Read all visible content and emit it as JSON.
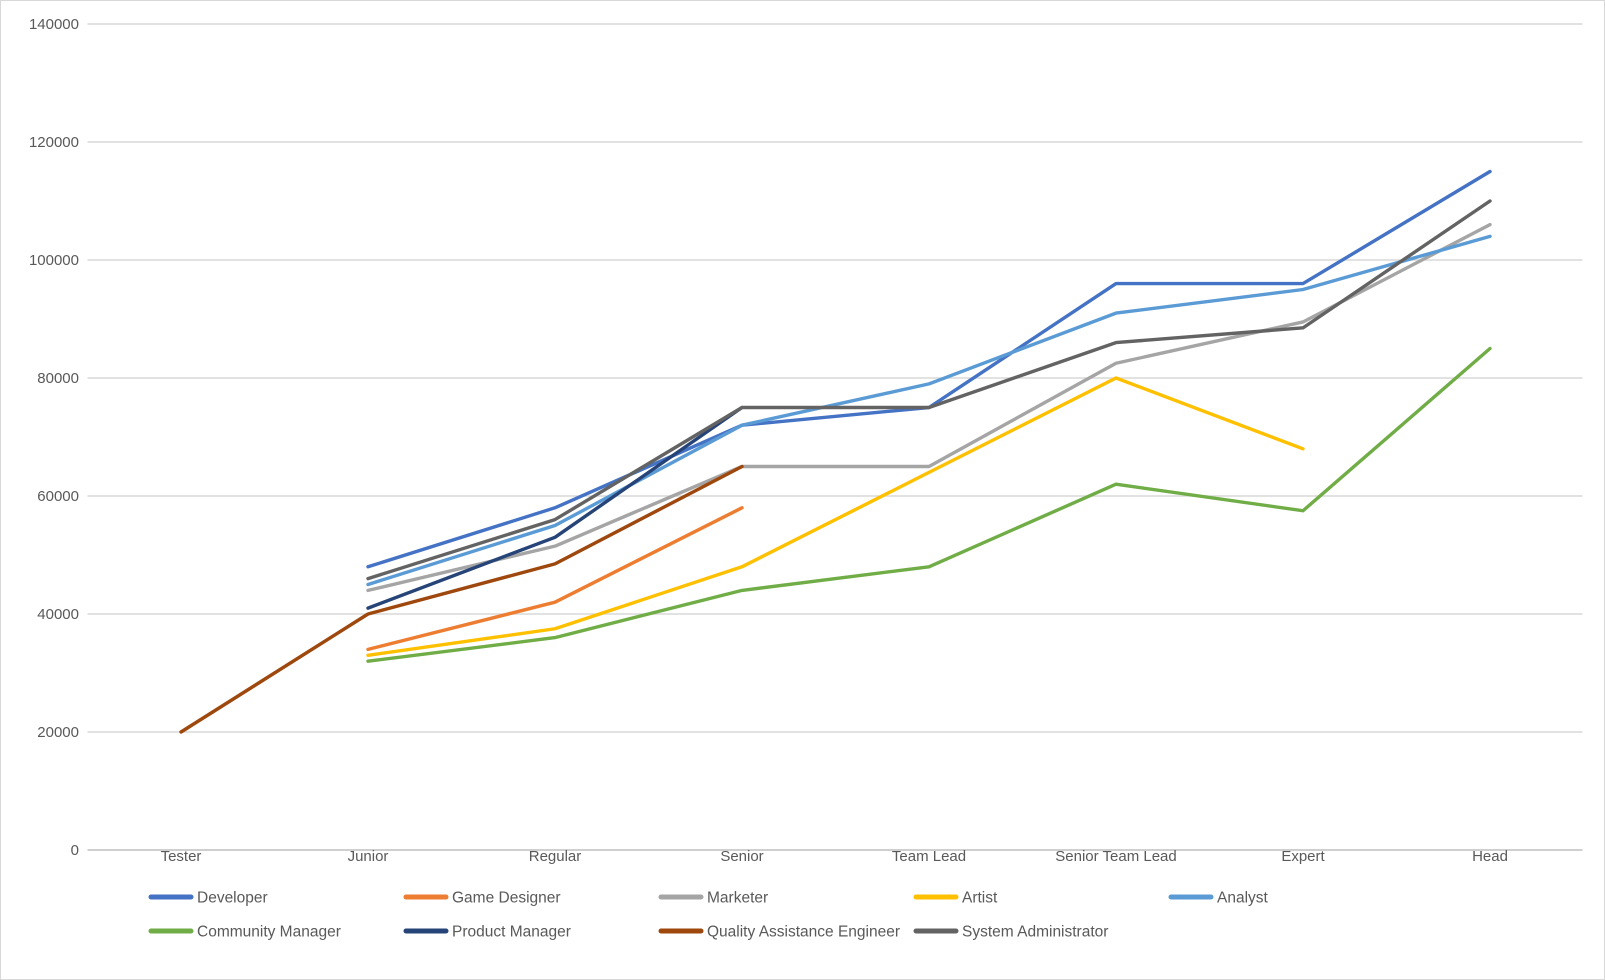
{
  "chart_data": {
    "type": "line",
    "title": "",
    "xlabel": "",
    "ylabel": "",
    "grid": true,
    "legend_position": "bottom",
    "categories": [
      "Tester",
      "Junior",
      "Regular",
      "Senior",
      "Team Lead",
      "Senior Team Lead",
      "Expert",
      "Head"
    ],
    "y_axis": {
      "min": 0,
      "max": 140000,
      "step": 20000,
      "tick_labels": [
        "0",
        "20000",
        "40000",
        "60000",
        "80000",
        "100000",
        "120000",
        "140000"
      ]
    },
    "series": [
      {
        "name": "Developer",
        "color": "#4472C4",
        "values": [
          null,
          48000,
          58000,
          72000,
          75000,
          96000,
          96000,
          115000
        ]
      },
      {
        "name": "Game Designer",
        "color": "#ED7D31",
        "values": [
          null,
          34000,
          42000,
          58000,
          null,
          null,
          null,
          null
        ]
      },
      {
        "name": "Marketer",
        "color": "#A5A5A5",
        "values": [
          null,
          44000,
          51500,
          65000,
          65000,
          82500,
          89500,
          106000
        ]
      },
      {
        "name": "Artist",
        "color": "#FFC000",
        "values": [
          null,
          33000,
          37500,
          48000,
          64000,
          80000,
          68000,
          null
        ]
      },
      {
        "name": "Analyst",
        "color": "#5B9BD5",
        "values": [
          null,
          45000,
          55000,
          72000,
          79000,
          91000,
          95000,
          104000
        ]
      },
      {
        "name": "Community Manager",
        "color": "#70AD47",
        "values": [
          null,
          32000,
          36000,
          44000,
          48000,
          62000,
          57500,
          85000
        ]
      },
      {
        "name": "Product Manager",
        "color": "#264478",
        "values": [
          null,
          41000,
          53000,
          75000,
          null,
          null,
          null,
          null
        ]
      },
      {
        "name": "Quality Assistance Engineer",
        "color": "#9E480E",
        "values": [
          20000,
          40000,
          48500,
          65000,
          null,
          null,
          null,
          null
        ]
      },
      {
        "name": "System Administrator",
        "color": "#636363",
        "values": [
          null,
          46000,
          56000,
          75000,
          75000,
          86000,
          88500,
          110000
        ]
      }
    ],
    "legend_rows": [
      [
        "Developer",
        "Game Designer",
        "Marketer",
        "Artist",
        "Analyst"
      ],
      [
        "Community Manager",
        "Product Manager",
        "Quality Assistance Engineer",
        "System Administrator"
      ]
    ],
    "colors": {
      "gridline": "#D9D9D9",
      "axis_line": "#BFBFBF",
      "text": "#595959"
    }
  }
}
